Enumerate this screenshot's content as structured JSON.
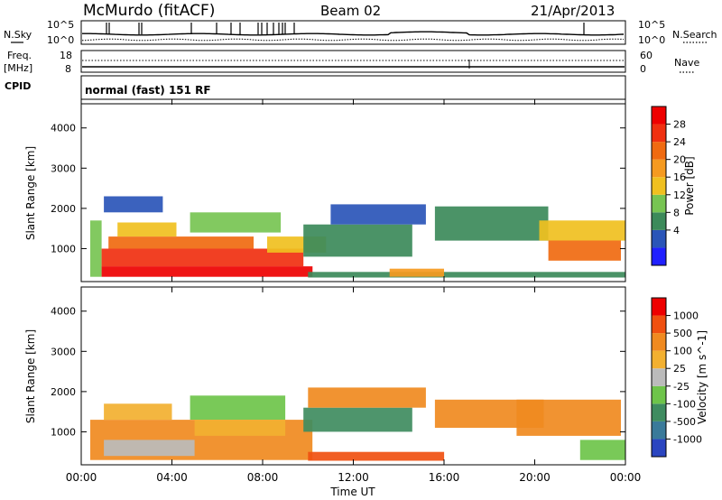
{
  "header": {
    "station": "McMurdo (fitACF)",
    "beam": "Beam 02",
    "date": "21/Apr/2013"
  },
  "summary_panels": {
    "nsky_label": "N.Sky",
    "nsearch_label": "N.Search",
    "noise_ticks": [
      "10^5",
      "10^0"
    ],
    "freq_label_top": "Freq.",
    "freq_label_unit": "[MHz]",
    "freq_ticks": [
      "18",
      "8"
    ],
    "nave_label": "Nave",
    "nave_ticks": [
      "60",
      "0"
    ],
    "cpid_label": "CPID",
    "cpid_value": "normal (fast) 151 RF"
  },
  "axes": {
    "y_label": "Slant Range [km]",
    "y_ticks": [
      "4000",
      "3000",
      "2000",
      "1000"
    ],
    "x_label": "Time UT",
    "x_ticks": [
      "00:00",
      "04:00",
      "08:00",
      "12:00",
      "16:00",
      "20:00",
      "00:00"
    ]
  },
  "colorbars": {
    "power": {
      "label": "Power [dB]",
      "ticks": [
        "28",
        "24",
        "20",
        "16",
        "12",
        "8",
        "4"
      ],
      "colors": [
        "#2020ff",
        "#2a55b8",
        "#3c8a5a",
        "#77c452",
        "#f0c020",
        "#f59a20",
        "#f06a10",
        "#f03010",
        "#ee0000"
      ]
    },
    "velocity": {
      "label": "Velocity [m s^-1]",
      "ticks": [
        "1000",
        "500",
        "100",
        "25",
        "-25",
        "-100",
        "-500",
        "-1000"
      ],
      "colors": [
        "#2a45c0",
        "#3a7a9a",
        "#3f8c60",
        "#6ec44a",
        "#bbbbbb",
        "#f2b030",
        "#f08a20",
        "#f05010",
        "#ee0000"
      ]
    }
  },
  "chart_data": [
    {
      "type": "heatmap",
      "title": "Power",
      "x_unit": "hours UT",
      "y_unit": "km",
      "xlim": [
        0,
        24
      ],
      "ylim": [
        180,
        4600
      ],
      "colorbar_ticks": [
        "28",
        "24",
        "20",
        "16",
        "12",
        "8",
        "4"
      ],
      "bands": [
        {
          "x0": 0.4,
          "x1": 0.9,
          "y0": 300,
          "y1": 1700,
          "level": 3
        },
        {
          "x0": 0.9,
          "x1": 10.2,
          "y0": 300,
          "y1": 560,
          "level": 8
        },
        {
          "x0": 0.9,
          "x1": 9.8,
          "y0": 560,
          "y1": 1000,
          "level": 7
        },
        {
          "x0": 1.2,
          "x1": 7.6,
          "y0": 1000,
          "y1": 1300,
          "level": 6
        },
        {
          "x0": 1.6,
          "x1": 4.2,
          "y0": 1300,
          "y1": 1650,
          "level": 4
        },
        {
          "x0": 4.8,
          "x1": 8.8,
          "y0": 1400,
          "y1": 1900,
          "level": 3
        },
        {
          "x0": 8.2,
          "x1": 10.8,
          "y0": 900,
          "y1": 1300,
          "level": 4
        },
        {
          "x0": 9.8,
          "x1": 14.6,
          "y0": 800,
          "y1": 1600,
          "level": 2
        },
        {
          "x0": 11.0,
          "x1": 15.2,
          "y0": 1600,
          "y1": 2100,
          "level": 1
        },
        {
          "x0": 1.0,
          "x1": 3.6,
          "y0": 1900,
          "y1": 2300,
          "level": 1
        },
        {
          "x0": 15.6,
          "x1": 20.6,
          "y0": 1200,
          "y1": 2050,
          "level": 2
        },
        {
          "x0": 20.2,
          "x1": 24.0,
          "y0": 1200,
          "y1": 1700,
          "level": 4
        },
        {
          "x0": 20.6,
          "x1": 23.8,
          "y0": 700,
          "y1": 1200,
          "level": 6
        },
        {
          "x0": 10.0,
          "x1": 24.0,
          "y0": 280,
          "y1": 420,
          "level": 2
        },
        {
          "x0": 13.6,
          "x1": 16.0,
          "y0": 300,
          "y1": 500,
          "level": 5
        }
      ]
    },
    {
      "type": "heatmap",
      "title": "Velocity",
      "x_unit": "hours UT",
      "y_unit": "km",
      "xlim": [
        0,
        24
      ],
      "ylim": [
        180,
        4600
      ],
      "colorbar_ticks": [
        "1000",
        "500",
        "100",
        "25",
        "-25",
        "-100",
        "-500",
        "-1000"
      ],
      "bands": [
        {
          "x0": 0.4,
          "x1": 10.2,
          "y0": 300,
          "y1": 1300,
          "level": 6
        },
        {
          "x0": 1.0,
          "x1": 5.0,
          "y0": 400,
          "y1": 800,
          "level": 4
        },
        {
          "x0": 5.0,
          "x1": 9.0,
          "y0": 900,
          "y1": 1300,
          "level": 5
        },
        {
          "x0": 1.0,
          "x1": 4.0,
          "y0": 1300,
          "y1": 1700,
          "level": 5
        },
        {
          "x0": 4.8,
          "x1": 9.0,
          "y0": 1300,
          "y1": 1900,
          "level": 3
        },
        {
          "x0": 9.8,
          "x1": 14.6,
          "y0": 1000,
          "y1": 1600,
          "level": 2
        },
        {
          "x0": 10.0,
          "x1": 15.2,
          "y0": 1600,
          "y1": 2100,
          "level": 6
        },
        {
          "x0": 15.6,
          "x1": 20.4,
          "y0": 1100,
          "y1": 1800,
          "level": 6
        },
        {
          "x0": 19.2,
          "x1": 23.8,
          "y0": 900,
          "y1": 1800,
          "level": 6
        },
        {
          "x0": 22.0,
          "x1": 24.0,
          "y0": 300,
          "y1": 800,
          "level": 3
        },
        {
          "x0": 10.0,
          "x1": 16.0,
          "y0": 280,
          "y1": 500,
          "level": 7
        }
      ]
    }
  ]
}
